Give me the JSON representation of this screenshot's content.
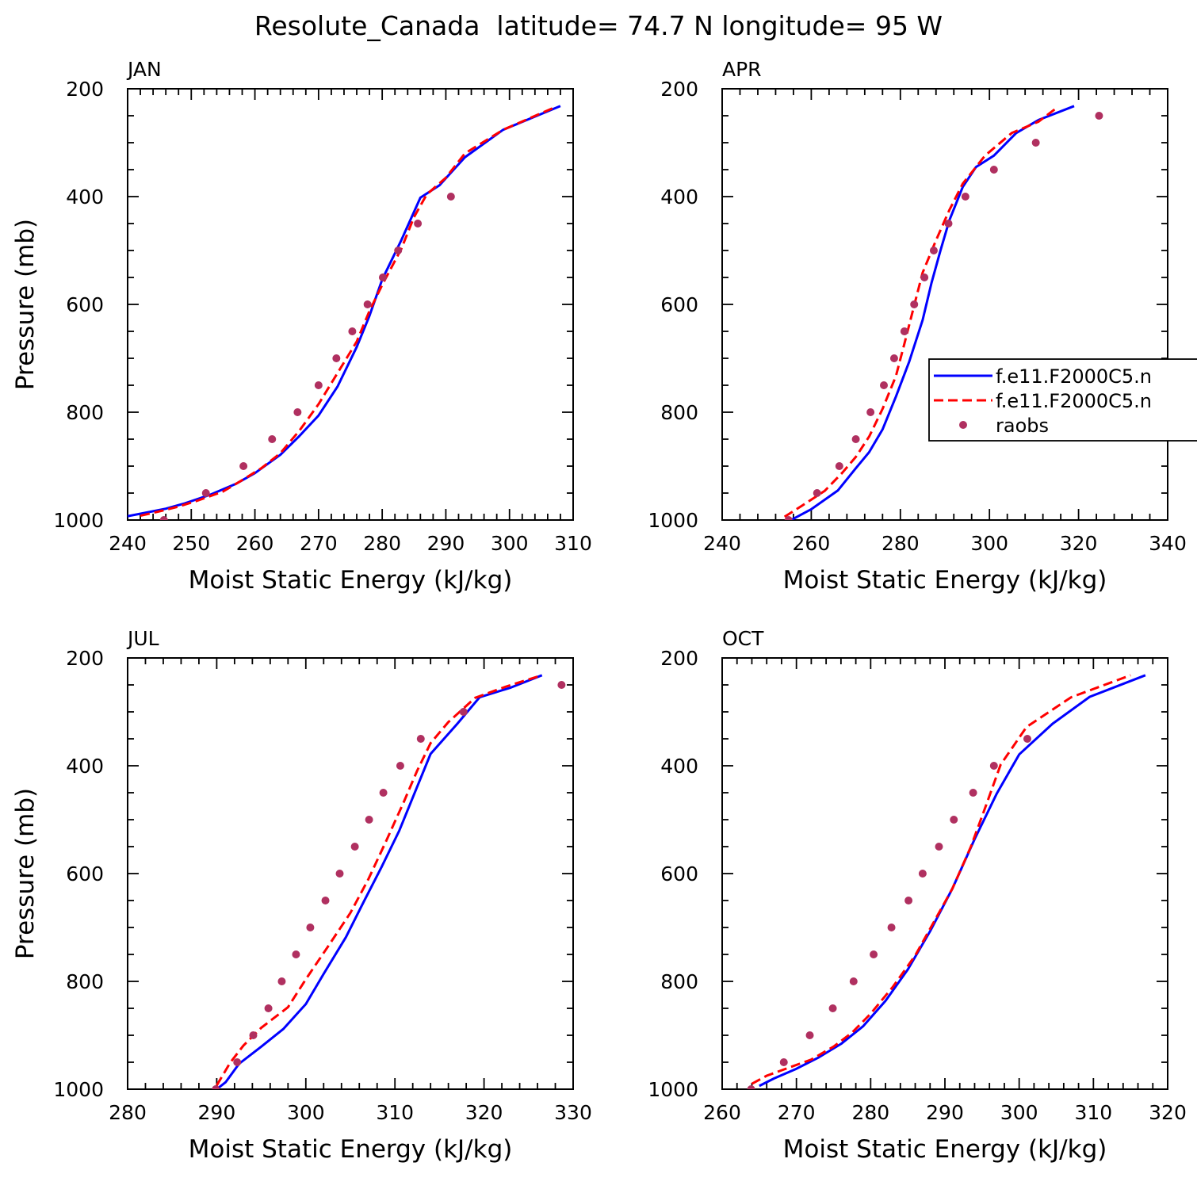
{
  "figure_title": "Resolute_Canada  latitude= 74.7 N longitude= 95 W",
  "legend": {
    "entries": [
      {
        "label": "f.e11.F2000C5.n",
        "style": "solid",
        "color": "#0000ff"
      },
      {
        "label": "f.e11.F2000C5.n",
        "style": "dashed",
        "color": "#ff0000"
      },
      {
        "label": "raobs",
        "style": "marker",
        "color": "#b03060"
      }
    ]
  },
  "chart_data": [
    {
      "type": "line",
      "panel": "JAN",
      "title": "JAN",
      "xlabel": "Moist Static Energy (kJ/kg)",
      "ylabel": "Pressure (mb)",
      "xlim": [
        240,
        310
      ],
      "ylim": [
        1000,
        200
      ],
      "xticks": [
        240,
        250,
        260,
        270,
        280,
        290,
        300,
        310
      ],
      "yticks": [
        200,
        400,
        600,
        800,
        1000
      ],
      "series": [
        {
          "name": "f.e11.F2000C5.n",
          "color": "#0000ff",
          "dash": "solid",
          "points": [
            [
              240,
              993
            ],
            [
              243,
              986
            ],
            [
              246,
              979
            ],
            [
              249,
              969
            ],
            [
              253,
              953
            ],
            [
              257,
              933
            ],
            [
              260,
              913
            ],
            [
              264,
              879
            ],
            [
              267,
              844
            ],
            [
              270,
              806
            ],
            [
              273,
              752
            ],
            [
              276,
              679
            ],
            [
              278,
              621
            ],
            [
              280,
              554
            ],
            [
              283,
              481
            ],
            [
              286,
              402
            ],
            [
              289,
              379
            ],
            [
              293,
              327
            ],
            [
              299,
              276
            ],
            [
              308,
              232
            ]
          ]
        },
        {
          "name": "f.e11.F2000C5.n",
          "color": "#ff0000",
          "dash": "dashed",
          "points": [
            [
              242,
              992
            ],
            [
              245,
              984
            ],
            [
              248,
              975
            ],
            [
              251,
              964
            ],
            [
              255,
              947
            ],
            [
              258,
              926
            ],
            [
              261,
              904
            ],
            [
              264,
              876
            ],
            [
              267,
              834
            ],
            [
              270,
              785
            ],
            [
              273,
              727
            ],
            [
              276,
              669
            ],
            [
              278,
              612
            ],
            [
              280,
              564
            ],
            [
              283,
              497
            ],
            [
              285,
              438
            ],
            [
              287,
              396
            ],
            [
              290,
              365
            ],
            [
              293,
              320
            ],
            [
              299,
              276
            ],
            [
              307,
              235
            ]
          ]
        },
        {
          "name": "raobs",
          "color": "#b03060",
          "dash": "marker",
          "points": [
            [
              245.7,
              1000
            ],
            [
              252.3,
              950
            ],
            [
              258.2,
              900
            ],
            [
              262.7,
              850
            ],
            [
              266.7,
              800
            ],
            [
              270,
              750
            ],
            [
              272.8,
              700
            ],
            [
              275.3,
              650
            ],
            [
              277.7,
              600
            ],
            [
              280.1,
              550
            ],
            [
              282.5,
              500
            ],
            [
              285.6,
              450
            ],
            [
              290.8,
              400
            ]
          ]
        }
      ]
    },
    {
      "type": "line",
      "panel": "APR",
      "title": "APR",
      "xlabel": "Moist Static Energy (kJ/kg)",
      "ylabel": "Pressure (mb)",
      "xlim": [
        240,
        340
      ],
      "ylim": [
        1000,
        200
      ],
      "xticks": [
        240,
        260,
        280,
        300,
        320,
        340
      ],
      "yticks": [
        200,
        400,
        600,
        800,
        1000
      ],
      "series": [
        {
          "name": "f.e11.F2000C5.n",
          "color": "#0000ff",
          "dash": "solid",
          "points": [
            [
              255,
              1002
            ],
            [
              260,
              980
            ],
            [
              266,
              945
            ],
            [
              270,
              904
            ],
            [
              273,
              874
            ],
            [
              276,
              832
            ],
            [
              279,
              771
            ],
            [
              282,
              706
            ],
            [
              285,
              629
            ],
            [
              287,
              560
            ],
            [
              289,
              500
            ],
            [
              291,
              444
            ],
            [
              294,
              382
            ],
            [
              297,
              345
            ],
            [
              301,
              324
            ],
            [
              306,
              282
            ],
            [
              311,
              258
            ],
            [
              319,
              232
            ]
          ]
        },
        {
          "name": "f.e11.F2000C5.n",
          "color": "#ff0000",
          "dash": "dashed",
          "points": [
            [
              254,
              994
            ],
            [
              258,
              973
            ],
            [
              263,
              946
            ],
            [
              267,
              912
            ],
            [
              270,
              883
            ],
            [
              273,
              845
            ],
            [
              276,
              794
            ],
            [
              279,
              733
            ],
            [
              281,
              670
            ],
            [
              283,
              605
            ],
            [
              285,
              541
            ],
            [
              288,
              481
            ],
            [
              291,
              425
            ],
            [
              294,
              376
            ],
            [
              299,
              324
            ],
            [
              305,
              282
            ],
            [
              311,
              261
            ],
            [
              315,
              236
            ]
          ]
        },
        {
          "name": "raobs",
          "color": "#b03060",
          "dash": "marker",
          "points": [
            [
              254.9,
              1000
            ],
            [
              261.3,
              950
            ],
            [
              266.3,
              900
            ],
            [
              270,
              850
            ],
            [
              273.3,
              800
            ],
            [
              276.3,
              750
            ],
            [
              278.6,
              700
            ],
            [
              280.9,
              650
            ],
            [
              283.1,
              600
            ],
            [
              285.4,
              550
            ],
            [
              287.5,
              500
            ],
            [
              290.8,
              450
            ],
            [
              294.6,
              400
            ],
            [
              301,
              350
            ],
            [
              310.4,
              300
            ],
            [
              324.6,
              250
            ]
          ]
        }
      ]
    },
    {
      "type": "line",
      "panel": "JUL",
      "title": "JUL",
      "xlabel": "Moist Static Energy (kJ/kg)",
      "ylabel": "Pressure (mb)",
      "xlim": [
        280,
        330
      ],
      "ylim": [
        1000,
        200
      ],
      "xticks": [
        280,
        290,
        300,
        310,
        320,
        330
      ],
      "yticks": [
        200,
        400,
        600,
        800,
        1000
      ],
      "series": [
        {
          "name": "f.e11.F2000C5.n",
          "color": "#0000ff",
          "dash": "solid",
          "points": [
            [
              290,
              1000
            ],
            [
              291,
              987
            ],
            [
              292.5,
              953
            ],
            [
              295,
              921
            ],
            [
              297.5,
              888
            ],
            [
              300,
              842
            ],
            [
              302,
              786
            ],
            [
              304.5,
              718
            ],
            [
              306.5,
              652
            ],
            [
              308.5,
              588
            ],
            [
              310.5,
              520
            ],
            [
              312,
              459
            ],
            [
              314,
              378
            ],
            [
              317,
              322
            ],
            [
              319.5,
              273
            ],
            [
              323,
              255
            ],
            [
              326.5,
              232
            ]
          ]
        },
        {
          "name": "f.e11.F2000C5.n",
          "color": "#ff0000",
          "dash": "dashed",
          "points": [
            [
              290,
              993
            ],
            [
              291.5,
              951
            ],
            [
              293,
              919
            ],
            [
              295,
              886
            ],
            [
              298,
              848
            ],
            [
              300,
              796
            ],
            [
              302.5,
              735
            ],
            [
              305,
              673
            ],
            [
              307,
              611
            ],
            [
              309,
              540
            ],
            [
              311,
              467
            ],
            [
              312.5,
              409
            ],
            [
              314,
              358
            ],
            [
              316,
              319
            ],
            [
              319,
              274
            ],
            [
              322.5,
              253
            ],
            [
              326.5,
              232
            ]
          ]
        },
        {
          "name": "raobs",
          "color": "#b03060",
          "dash": "marker",
          "points": [
            [
              289.9,
              1000
            ],
            [
              292.3,
              950
            ],
            [
              294.1,
              900
            ],
            [
              295.8,
              850
            ],
            [
              297.3,
              800
            ],
            [
              298.9,
              750
            ],
            [
              300.5,
              700
            ],
            [
              302.2,
              650
            ],
            [
              303.8,
              600
            ],
            [
              305.5,
              550
            ],
            [
              307.1,
              500
            ],
            [
              308.7,
              450
            ],
            [
              310.6,
              400
            ],
            [
              312.9,
              350
            ],
            [
              317.7,
              300
            ],
            [
              328.7,
              250
            ]
          ]
        }
      ]
    },
    {
      "type": "line",
      "panel": "OCT",
      "title": "OCT",
      "xlabel": "Moist Static Energy (kJ/kg)",
      "ylabel": "Pressure (mb)",
      "xlim": [
        260,
        320
      ],
      "ylim": [
        1000,
        200
      ],
      "xticks": [
        260,
        270,
        280,
        290,
        300,
        310,
        320
      ],
      "yticks": [
        200,
        400,
        600,
        800,
        1000
      ],
      "series": [
        {
          "name": "f.e11.F2000C5.n",
          "color": "#0000ff",
          "dash": "solid",
          "points": [
            [
              265,
              994
            ],
            [
              267,
              980
            ],
            [
              270,
              962
            ],
            [
              273,
              941
            ],
            [
              276,
              916
            ],
            [
              279,
              883
            ],
            [
              282,
              836
            ],
            [
              285,
              778
            ],
            [
              288,
              707
            ],
            [
              291,
              628
            ],
            [
              294,
              536
            ],
            [
              297,
              451
            ],
            [
              300,
              379
            ],
            [
              304.5,
              322
            ],
            [
              309.5,
              272
            ],
            [
              317,
              232
            ]
          ]
        },
        {
          "name": "f.e11.F2000C5.n",
          "color": "#ff0000",
          "dash": "dashed",
          "points": [
            [
              264,
              990
            ],
            [
              266,
              975
            ],
            [
              269,
              960
            ],
            [
              272,
              945
            ],
            [
              275,
              921
            ],
            [
              277.5,
              895
            ],
            [
              280,
              860
            ],
            [
              283,
              810
            ],
            [
              286,
              752
            ],
            [
              288.5,
              690
            ],
            [
              291,
              628
            ],
            [
              293.5,
              550
            ],
            [
              295.5,
              475
            ],
            [
              297.5,
              398
            ],
            [
              301,
              328
            ],
            [
              307,
              273
            ],
            [
              315,
              232
            ]
          ]
        },
        {
          "name": "raobs",
          "color": "#b03060",
          "dash": "marker",
          "points": [
            [
              263.9,
              1000
            ],
            [
              268.3,
              950
            ],
            [
              271.8,
              900
            ],
            [
              274.9,
              850
            ],
            [
              277.7,
              800
            ],
            [
              280.4,
              750
            ],
            [
              282.8,
              700
            ],
            [
              285.1,
              650
            ],
            [
              287,
              600
            ],
            [
              289.2,
              550
            ],
            [
              291.2,
              500
            ],
            [
              293.8,
              450
            ],
            [
              296.6,
              400
            ],
            [
              301.1,
              350
            ]
          ]
        }
      ]
    }
  ]
}
